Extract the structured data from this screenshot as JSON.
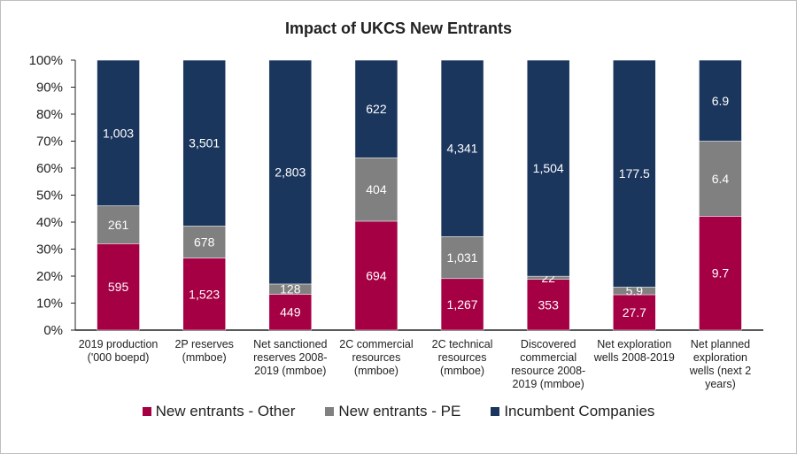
{
  "chart_data": {
    "type": "bar",
    "stacked": "percent",
    "title": "Impact of UKCS New Entrants",
    "xlabel": "",
    "ylabel": "",
    "ylim": [
      0,
      100
    ],
    "yticks": [
      "0%",
      "10%",
      "20%",
      "30%",
      "40%",
      "50%",
      "60%",
      "70%",
      "80%",
      "90%",
      "100%"
    ],
    "grid": false,
    "legend": "bottom",
    "categories": [
      [
        "2019 production",
        "('000 boepd)"
      ],
      [
        "2P reserves",
        "(mmboe)"
      ],
      [
        "Net sanctioned",
        "reserves 2008-",
        "2019 (mmboe)"
      ],
      [
        "2C commercial",
        "resources",
        "(mmboe)"
      ],
      [
        "2C technical",
        "resources",
        "(mmboe)"
      ],
      [
        "Discovered",
        "commercial",
        "resource 2008-",
        "2019 (mmboe)"
      ],
      [
        "Net exploration",
        "wells 2008-2019"
      ],
      [
        "Net planned",
        "exploration",
        "wells (next 2",
        "years)"
      ]
    ],
    "series": [
      {
        "name": "New entrants - Other",
        "color": "#A50044",
        "values": [
          595,
          1523,
          449,
          694,
          1267,
          353,
          27.7,
          9.7
        ],
        "labels": [
          "595",
          "1,523",
          "449",
          "694",
          "1,267",
          "353",
          "27.7",
          "9.7"
        ]
      },
      {
        "name": "New entrants - PE",
        "color": "#808080",
        "values": [
          261,
          678,
          128,
          404,
          1031,
          22,
          5.9,
          6.4
        ],
        "labels": [
          "261",
          "678",
          "128",
          "404",
          "1,031",
          "22",
          "5.9",
          "6.4"
        ]
      },
      {
        "name": "Incumbent Companies",
        "color": "#1B365D",
        "values": [
          1003,
          3501,
          2803,
          622,
          4341,
          1504,
          177.5,
          6.9
        ],
        "labels": [
          "1,003",
          "3,501",
          "2,803",
          "622",
          "4,341",
          "1,504",
          "177.5",
          "6.9"
        ]
      }
    ]
  }
}
